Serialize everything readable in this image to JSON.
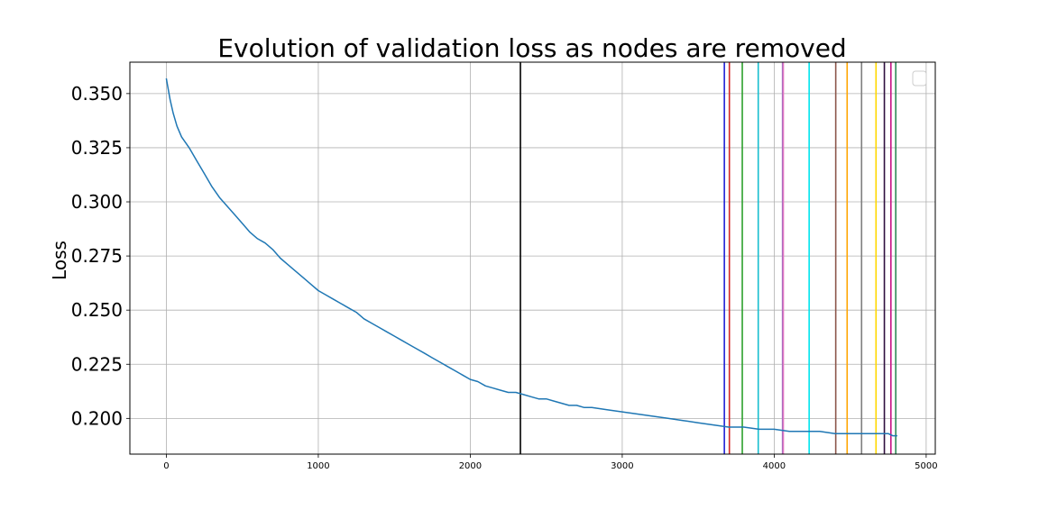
{
  "chart_data": {
    "type": "line",
    "title": "Evolution of validation loss as nodes are removed",
    "xlabel": "",
    "ylabel": "Loss",
    "xlim": [
      -240,
      5060
    ],
    "ylim": [
      0.1835,
      0.3645
    ],
    "xticks": [
      0,
      1000,
      2000,
      3000,
      4000,
      5000
    ],
    "yticks": [
      0.2,
      0.225,
      0.25,
      0.275,
      0.3,
      0.325,
      0.35
    ],
    "ytick_labels": [
      "0.200",
      "0.225",
      "0.250",
      "0.275",
      "0.300",
      "0.325",
      "0.350"
    ],
    "grid": true,
    "legend": {
      "location": "upper right",
      "entries": []
    },
    "series": [
      {
        "color": "#1f77b4",
        "x": [
          0,
          10,
          25,
          45,
          70,
          100,
          150,
          200,
          250,
          300,
          350,
          400,
          450,
          500,
          550,
          600,
          650,
          700,
          750,
          800,
          850,
          900,
          950,
          1000,
          1050,
          1100,
          1150,
          1200,
          1250,
          1300,
          1350,
          1400,
          1450,
          1500,
          1550,
          1600,
          1650,
          1700,
          1750,
          1800,
          1850,
          1900,
          1950,
          2000,
          2050,
          2100,
          2150,
          2200,
          2250,
          2300,
          2350,
          2400,
          2450,
          2500,
          2550,
          2600,
          2650,
          2700,
          2750,
          2800,
          2900,
          3000,
          3100,
          3200,
          3300,
          3400,
          3500,
          3600,
          3700,
          3800,
          3900,
          4000,
          4100,
          4200,
          4300,
          4400,
          4500,
          4600,
          4700,
          4750,
          4780,
          4800,
          4810
        ],
        "y": [
          0.357,
          0.353,
          0.347,
          0.341,
          0.335,
          0.33,
          0.325,
          0.319,
          0.313,
          0.307,
          0.302,
          0.298,
          0.294,
          0.29,
          0.286,
          0.283,
          0.281,
          0.278,
          0.274,
          0.271,
          0.268,
          0.265,
          0.262,
          0.259,
          0.257,
          0.255,
          0.253,
          0.251,
          0.249,
          0.246,
          0.244,
          0.242,
          0.24,
          0.238,
          0.236,
          0.234,
          0.232,
          0.23,
          0.228,
          0.226,
          0.224,
          0.222,
          0.22,
          0.218,
          0.217,
          0.215,
          0.214,
          0.213,
          0.212,
          0.212,
          0.211,
          0.21,
          0.209,
          0.209,
          0.208,
          0.207,
          0.206,
          0.206,
          0.205,
          0.205,
          0.204,
          0.203,
          0.202,
          0.201,
          0.2,
          0.199,
          0.198,
          0.197,
          0.196,
          0.196,
          0.195,
          0.195,
          0.194,
          0.194,
          0.194,
          0.193,
          0.193,
          0.193,
          0.193,
          0.193,
          0.192,
          0.192,
          0.192
        ]
      }
    ],
    "vlines": [
      {
        "x": 2330,
        "color": "#000000"
      },
      {
        "x": 3672,
        "color": "#1f1fd6"
      },
      {
        "x": 3705,
        "color": "#d62728"
      },
      {
        "x": 3790,
        "color": "#2ca02c"
      },
      {
        "x": 3895,
        "color": "#17becf"
      },
      {
        "x": 4055,
        "color": "#9467bd"
      },
      {
        "x": 4060,
        "color": "#e377c2"
      },
      {
        "x": 4230,
        "color": "#00e5ee"
      },
      {
        "x": 4405,
        "color": "#8c564b"
      },
      {
        "x": 4480,
        "color": "#ffa500"
      },
      {
        "x": 4575,
        "color": "#7f7f7f"
      },
      {
        "x": 4670,
        "color": "#ffd700"
      },
      {
        "x": 4725,
        "color": "#2f0f3f"
      },
      {
        "x": 4768,
        "color": "#c71585"
      },
      {
        "x": 4800,
        "color": "#2e8b57"
      }
    ]
  }
}
